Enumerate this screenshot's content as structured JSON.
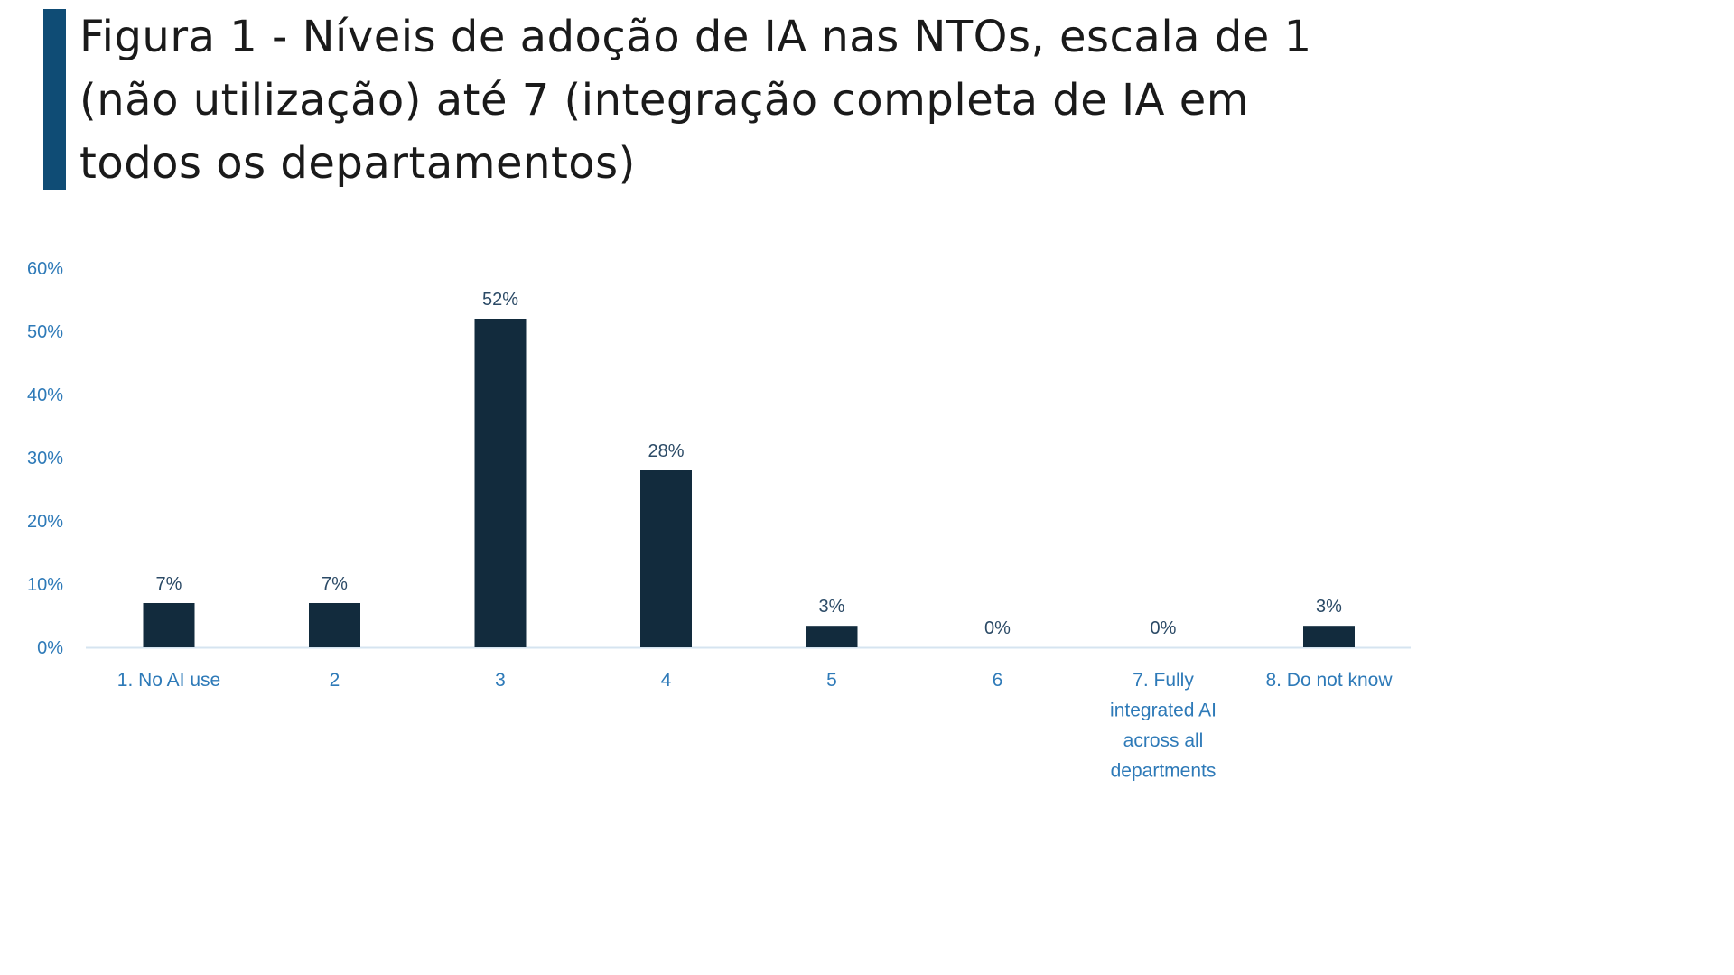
{
  "figure": {
    "title": "Figura 1 - Níveis de adoção de IA nas NTOs, escala de 1 (não utilização) até 7 (integração completa de IA em todos os departamentos)"
  },
  "colors": {
    "accent_bar": "#0f4c75",
    "bar": "#122b3d",
    "axis_text": "#2e7ab8",
    "data_label": "#2b4a66",
    "baseline": "#d6e4f0"
  },
  "chart_data": {
    "type": "bar",
    "title": "",
    "xlabel": "",
    "ylabel": "",
    "ylim": [
      0,
      60
    ],
    "yticks": [
      "0%",
      "10%",
      "20%",
      "30%",
      "40%",
      "50%",
      "60%"
    ],
    "grid": false,
    "legend": "none",
    "categories": [
      [
        "1. No AI use"
      ],
      [
        "2"
      ],
      [
        "3"
      ],
      [
        "4"
      ],
      [
        "5"
      ],
      [
        "6"
      ],
      [
        "7. Fully",
        "integrated AI",
        "across all",
        "departments"
      ],
      [
        "8. Do not know"
      ]
    ],
    "values": [
      7,
      7,
      52,
      28,
      3.4,
      0,
      0,
      3.4
    ],
    "data_labels": [
      "7%",
      "7%",
      "52%",
      "28%",
      "3%",
      "0%",
      "0%",
      "3%"
    ]
  }
}
